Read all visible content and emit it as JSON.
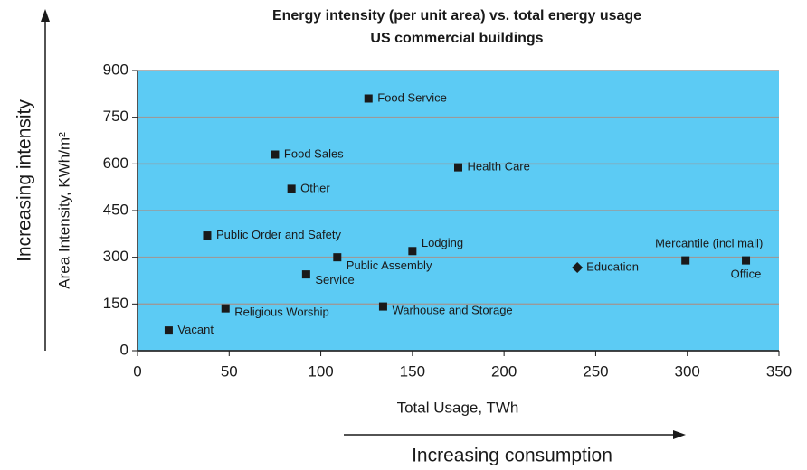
{
  "chart_data": {
    "type": "scatter",
    "title": "Energy intensity (per unit area) vs. total energy usage",
    "subtitle": "US commercial buildings",
    "x_label": "Total Usage, TWh",
    "y_label": "Area Intensity, KWh/m²",
    "annotations": [
      "Increasing intensity",
      "Increasing consumption"
    ],
    "xlim": [
      0,
      350
    ],
    "xticks": [
      0,
      50,
      100,
      150,
      200,
      250,
      300,
      350
    ],
    "ylim": [
      0,
      900
    ],
    "yticks": [
      0,
      150,
      300,
      450,
      600,
      750,
      900
    ],
    "grid": true,
    "background": "#5ccbf4",
    "color": "#1a1a1a",
    "points": [
      {
        "label": "Vacant",
        "x": 17,
        "y": 65,
        "marker": "square"
      },
      {
        "label": "Religious Worship",
        "x": 48,
        "y": 136,
        "marker": "square"
      },
      {
        "label": "Public Order and Safety",
        "x": 38,
        "y": 370,
        "marker": "square"
      },
      {
        "label": "Food Sales",
        "x": 75,
        "y": 630,
        "marker": "square"
      },
      {
        "label": "Other",
        "x": 84,
        "y": 520,
        "marker": "square"
      },
      {
        "label": "Service",
        "x": 92,
        "y": 245,
        "marker": "square"
      },
      {
        "label": "Public Assembly",
        "x": 109,
        "y": 300,
        "marker": "square"
      },
      {
        "label": "Food Service",
        "x": 126,
        "y": 810,
        "marker": "square"
      },
      {
        "label": "Warhouse and Storage",
        "x": 134,
        "y": 142,
        "marker": "square"
      },
      {
        "label": "Lodging",
        "x": 150,
        "y": 320,
        "marker": "square"
      },
      {
        "label": "Health Care",
        "x": 175,
        "y": 589,
        "marker": "square"
      },
      {
        "label": "Education",
        "x": 240,
        "y": 267,
        "marker": "diamond"
      },
      {
        "label": "Mercantile (incl mall)",
        "x": 299,
        "y": 290,
        "marker": "square"
      },
      {
        "label": "Office",
        "x": 332,
        "y": 290,
        "marker": "square"
      }
    ]
  }
}
